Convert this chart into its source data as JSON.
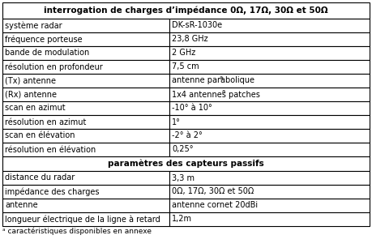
{
  "title": "interrogation de charges d’impédance 0Ω, 17Ω, 30Ω et 50Ω",
  "section2_title": "paramètres des capteurs passifs",
  "rows_section1": [
    [
      "système radar",
      "DK-sR-1030e",
      false
    ],
    [
      "fréquence porteuse",
      "23,8 GHz",
      false
    ],
    [
      "bande de modulation",
      "2 GHz",
      false
    ],
    [
      "résolution en profondeur",
      "7,5 cm",
      false
    ],
    [
      "(Tx) antenne",
      "antenne parabolique",
      true
    ],
    [
      "(Rx) antenne",
      "1x4 antennes patches",
      true
    ],
    [
      "scan en azimut",
      "-10° à 10°",
      false
    ],
    [
      "résolution en azimut",
      "1°",
      false
    ],
    [
      "scan en élévation",
      "-2° à 2°",
      false
    ],
    [
      "résolution en élévation",
      "0,25°",
      false
    ]
  ],
  "rows_section2": [
    [
      "distance du radar",
      "3,3 m",
      false
    ],
    [
      "impédance des charges",
      "0Ω, 17Ω, 30Ω et 50Ω",
      false
    ],
    [
      "antenne",
      "antenne cornet 20dBi",
      false
    ],
    [
      "longueur électrique de la ligne à retard",
      "1,2m",
      false
    ]
  ],
  "footnote": "ᵃ caractéristiques disponibles en annexe",
  "col_split": 0.455,
  "bg_color": "#ffffff",
  "border_color": "#000000",
  "text_color": "#000000",
  "title_fontsize": 7.5,
  "body_fontsize": 7.0,
  "footnote_fontsize": 6.5
}
